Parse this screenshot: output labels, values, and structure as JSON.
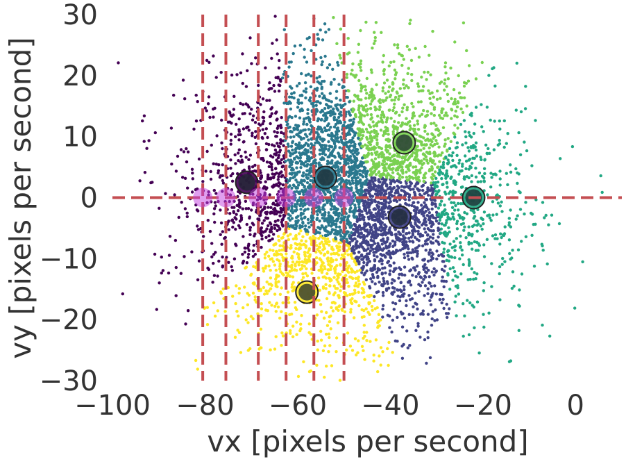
{
  "chart_data": {
    "type": "scatter",
    "xlabel": "vx [pixels per second]",
    "ylabel": "vy [pixels per second]",
    "xlim": [
      -100,
      10
    ],
    "ylim": [
      -30,
      30
    ],
    "xticks": [
      -100,
      -80,
      -60,
      -40,
      -20,
      0
    ],
    "yticks": [
      -30,
      -20,
      -10,
      0,
      10,
      20,
      30
    ],
    "x_tick_labels": [
      "−100",
      "−80",
      "−60",
      "−40",
      "−20",
      "0"
    ],
    "y_tick_labels": [
      "−30",
      "−20",
      "−10",
      "0",
      "10",
      "20",
      "30"
    ],
    "grid": false,
    "clusters": [
      {
        "color": "#440154",
        "centroid": [
          -71,
          2.5
        ]
      },
      {
        "color": "#2a788e",
        "centroid": [
          -54,
          3.3
        ]
      },
      {
        "color": "#7ad151",
        "centroid": [
          -37,
          9
        ]
      },
      {
        "color": "#22a884",
        "centroid": [
          -22,
          0
        ]
      },
      {
        "color": "#414487",
        "centroid": [
          -38,
          -3.2
        ]
      },
      {
        "color": "#fde725",
        "centroid": [
          -58,
          -15.5
        ]
      }
    ],
    "reference_lines": {
      "color": "#c44e52",
      "vertical_x": [
        -80.5,
        -75.5,
        -68.5,
        -62.5,
        -56.5,
        -50
      ],
      "horizontal_y": 0
    },
    "sample_points": {
      "color": "#c23fe0",
      "points": [
        [
          -80.5,
          0
        ],
        [
          -75.5,
          0
        ],
        [
          -68.5,
          0
        ],
        [
          -62.5,
          0
        ],
        [
          -56.5,
          0
        ],
        [
          -50,
          0
        ]
      ]
    }
  }
}
